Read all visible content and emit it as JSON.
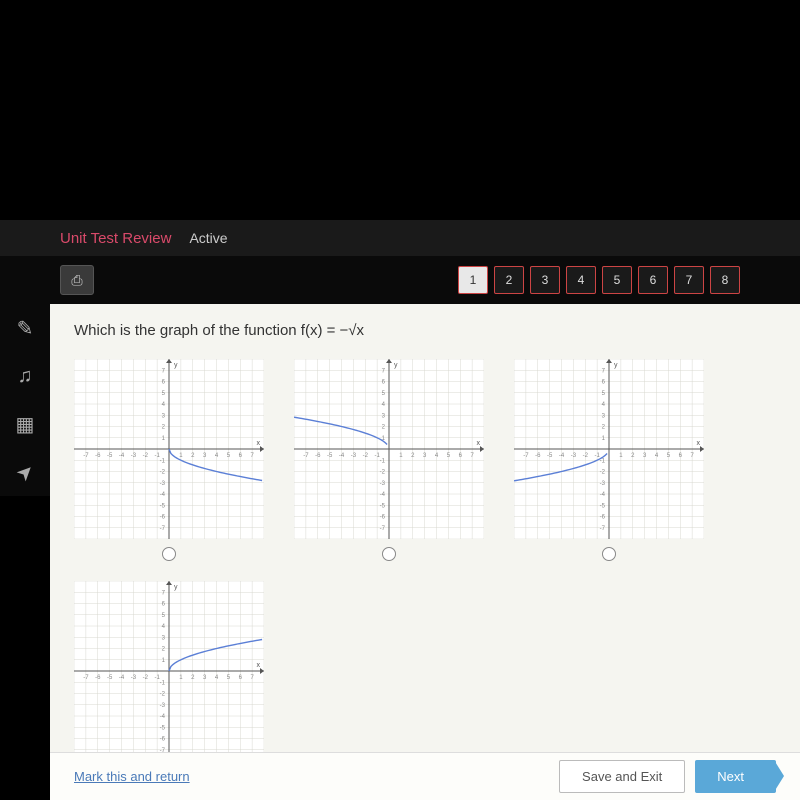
{
  "header": {
    "title": "Unit Test Review",
    "status": "Active"
  },
  "toolbar": {
    "print_icon": "⎙"
  },
  "question_nav": {
    "items": [
      "1",
      "2",
      "3",
      "4",
      "5",
      "6",
      "7",
      "8"
    ],
    "active_index": 0
  },
  "left_tools": {
    "pencil": "✎",
    "headphones": "♫",
    "calc": "▦",
    "pointer": "➤"
  },
  "question": {
    "prompt": "Which is the graph of the function f(x) = −√x"
  },
  "graphs": {
    "grid": {
      "xmin": -8,
      "xmax": 8,
      "ymin": -8,
      "ymax": 8,
      "tick_step": 1,
      "major_grid_color": "#d8d8d0",
      "axis_color": "#555",
      "curve_color": "#5b7fd6",
      "curve_width": 1.4,
      "bg": "#ffffff",
      "label_color": "#888",
      "label_fontsize": 6
    },
    "options": [
      {
        "id": "A",
        "curve_type": "neg_sqrt_x",
        "domain": [
          0,
          8
        ]
      },
      {
        "id": "B",
        "curve_type": "sqrt_neg_x",
        "domain": [
          -8,
          0
        ]
      },
      {
        "id": "C",
        "curve_type": "neg_sqrt_neg_x",
        "domain": [
          -8,
          0
        ]
      },
      {
        "id": "D",
        "curve_type": "sqrt_x",
        "domain": [
          0,
          8
        ]
      }
    ]
  },
  "footer": {
    "mark": "Mark this and return",
    "save": "Save and Exit",
    "next": "Next"
  },
  "colors": {
    "header_bg": "#1a1a1a",
    "accent_red": "#d94a6a",
    "content_bg": "#f5f5f0",
    "next_btn": "#5aa8d8"
  }
}
